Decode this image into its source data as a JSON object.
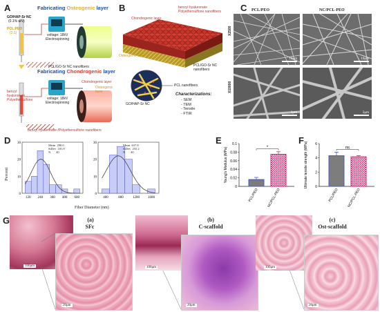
{
  "panels": {
    "A": "A",
    "B": "B",
    "C": "C",
    "D": "D",
    "E": "E",
    "F": "F",
    "G": "G"
  },
  "panelA": {
    "osteo_title_prefix": "Fabricating ",
    "osteo_title_word": "Osteogenic",
    "osteo_title_suffix": " layer",
    "chondro_title_prefix": "Fabricating ",
    "chondro_title_word": "Chondrogenic",
    "chondro_title_suffix": " layer",
    "syringe1_label1": "GO/HAP-Sr NC",
    "syringe1_label2": "(0.1% w/v)",
    "syringe1_label3": "PCL:PEO",
    "syringe1_label4": "(2:1)",
    "voltage1": "voltage: 18kV",
    "electro1": "Electrospinning",
    "nanofiber1": "PCL/GO-Sr NC nanofibers",
    "syringe2_label1": "benzyl",
    "syringe2_label2": "hyaluronate",
    "syringe2_label3": "Polyethersulfone",
    "voltage2": "voltage: 18kV",
    "electro2": "Electrospinning",
    "chondro_layer": "Chondrogenic layer",
    "osteo_layer": "Osteogenic layer",
    "nanofiber2": "benzyl hyaluronate /Polyethersulfone nanofibers"
  },
  "panelB": {
    "chondro_layer": "Chondrogenic layer",
    "benzyl": "benzyl hyaluronate",
    "pes": "Polyethersulfone nanofibers",
    "osteo_layer": "Osteogenic layer",
    "pcl_go": "PCL/GO-Sr NC nanofibers",
    "pcl_nano": "PCL nanofibers",
    "go_hap": "GO/HAP-Sr NC",
    "char_title": "Characterizations:",
    "char_items": [
      "- SEM",
      "- TEM",
      "- Tensile",
      "- FTIR"
    ]
  },
  "panelC": {
    "col1": "PCL/PEO",
    "col2": "NC/PCL-PEO",
    "row1": "X2500",
    "row2": "X10000",
    "scale_top_left": "10μm",
    "scale_top_right": "10μm",
    "scale_bottom_left": "2μm",
    "scale_bottom_right": "2μm"
  },
  "panelD": {
    "ylabel": "Percent",
    "xlabel": "Fiber Diameter (nm)",
    "left": {
      "stats": "Mean  290.0\nStDev  181.9\nN       40",
      "ticks": [
        "120",
        "240",
        "360",
        "480",
        "600"
      ],
      "yticks": [
        "30",
        "20",
        "10",
        "0"
      ]
    },
    "right": {
      "stats": "Mean  637.8\nStDev  255.2\nN       40",
      "ticks": [
        "400",
        "800",
        "1200",
        "1600"
      ],
      "yticks": [
        "30",
        "20",
        "10",
        "0"
      ]
    }
  },
  "chart_data": [
    {
      "type": "bar",
      "title": "",
      "xlabel": "Fiber Diameter (nm)",
      "ylabel": "Percent",
      "categories": [
        "120",
        "180",
        "240",
        "300",
        "360",
        "420",
        "480",
        "540",
        "600"
      ],
      "values": [
        7,
        10,
        25,
        17,
        5,
        5,
        2.5,
        0,
        2.5
      ],
      "ylim": [
        0,
        30
      ]
    },
    {
      "type": "bar",
      "title": "",
      "xlabel": "Fiber Diameter (nm)",
      "ylabel": "Percent",
      "categories": [
        "400",
        "600",
        "800",
        "1000",
        "1200",
        "1400",
        "1600"
      ],
      "values": [
        2.5,
        22.5,
        27.5,
        20,
        5,
        0,
        2.5
      ],
      "ylim": [
        0,
        30
      ]
    },
    {
      "type": "bar",
      "title": "",
      "ylabel": "Young's Modulus (MPa)",
      "categories": [
        "PCL/PEO",
        "NC/PCL-PEO"
      ],
      "values": [
        0.016,
        0.075
      ],
      "errors": [
        0.005,
        0.006
      ],
      "ylim": [
        0,
        0.1
      ],
      "yticks": [
        "0.1",
        "0.08",
        "0.06",
        "0.04",
        "0.02",
        "0"
      ],
      "annotation": "*",
      "colors": [
        "#4a58c8",
        "#e11d6e"
      ]
    },
    {
      "type": "bar",
      "title": "",
      "ylabel": "Ultimate tensile strength (MPa)",
      "categories": [
        "PCL/PEO",
        "NC/PCL-PEO"
      ],
      "values": [
        4.3,
        4.15
      ],
      "errors": [
        0.5,
        0.15
      ],
      "ylim": [
        0,
        6
      ],
      "yticks": [
        "6",
        "4",
        "2",
        "0"
      ],
      "annotation": "ns",
      "colors": [
        "#4a58c8",
        "#e11d6e"
      ]
    }
  ],
  "panelG": {
    "a_label": "(a)",
    "a_title": "SFc",
    "b_label": "(b)",
    "b_title": "C-scaffold",
    "c_label": "(c)",
    "c_title": "Ost-scaffold",
    "scales": [
      "100μm",
      "20μm",
      "100μm",
      "20μm",
      "100μm",
      "20μm"
    ]
  }
}
